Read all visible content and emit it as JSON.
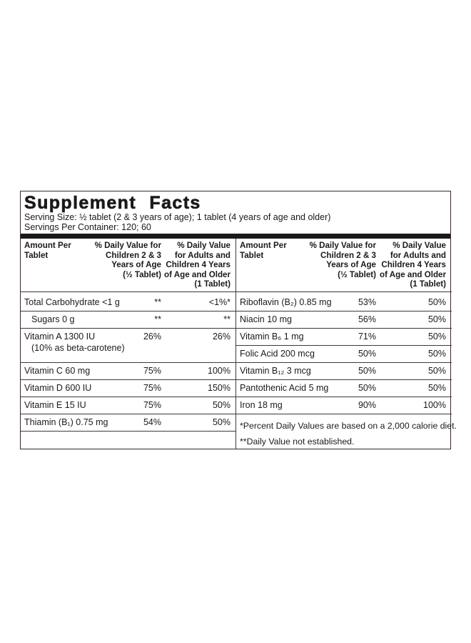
{
  "title": "Supplement Facts",
  "serving_size": "Serving Size: ½ tablet (2 & 3 years of age); 1 tablet (4 years of age and older)",
  "servings_per_container": "Servings Per Container: 120; 60",
  "left": {
    "header": [
      [
        "Amount Per",
        "Tablet"
      ],
      [
        "% Daily Value for",
        "Children 2 & 3",
        "Years of Age",
        "(½ Tablet)"
      ],
      [
        "% Daily Value",
        "for Adults and",
        "Children 4 Years",
        "of Age and Older",
        "(1 Tablet)"
      ]
    ],
    "rows": [
      {
        "name": "Total Carbohydrate <1 g",
        "dv_children": "**",
        "dv_adults": "<1%*"
      },
      {
        "name": "Sugars 0 g",
        "dv_children": "**",
        "dv_adults": "**",
        "indent": true
      },
      {
        "name": "Vitamin A 1300 IU",
        "note": "(10% as beta-carotene)",
        "dv_children": "26%",
        "dv_adults": "26%"
      },
      {
        "name": "Vitamin C 60 mg",
        "dv_children": "75%",
        "dv_adults": "100%"
      },
      {
        "name": "Vitamin D 600 IU",
        "dv_children": "75%",
        "dv_adults": "150%"
      },
      {
        "name": "Vitamin E 15 IU",
        "dv_children": "75%",
        "dv_adults": "50%"
      },
      {
        "name": "Thiamin (B₁) 0.75 mg",
        "dv_children": "54%",
        "dv_adults": "50%"
      }
    ]
  },
  "right": {
    "header": [
      [
        "Amount Per",
        "Tablet"
      ],
      [
        "% Daily Value for",
        "Children 2 & 3",
        "Years of Age",
        "(½ Tablet)"
      ],
      [
        "% Daily Value",
        "for Adults and",
        "Children 4 Years",
        "of Age and Older",
        "(1 Tablet)"
      ]
    ],
    "rows": [
      {
        "name": "Riboflavin (B₂) 0.85 mg",
        "dv_children": "53%",
        "dv_adults": "50%"
      },
      {
        "name": "Niacin 10 mg",
        "dv_children": "56%",
        "dv_adults": "50%"
      },
      {
        "name": "Vitamin B₆ 1 mg",
        "dv_children": "71%",
        "dv_adults": "50%"
      },
      {
        "name": "Folic Acid 200 mcg",
        "dv_children": "50%",
        "dv_adults": "50%"
      },
      {
        "name": "Vitamin B₁₂ 3 mcg",
        "dv_children": "50%",
        "dv_adults": "50%"
      },
      {
        "name": "Pantothenic Acid 5 mg",
        "dv_children": "50%",
        "dv_adults": "50%"
      },
      {
        "name": "Iron 18 mg",
        "dv_children": "90%",
        "dv_adults": "100%"
      }
    ]
  },
  "footnotes": [
    "*Percent Daily Values are based on a 2,000 calorie diet.",
    "**Daily Value not established."
  ]
}
